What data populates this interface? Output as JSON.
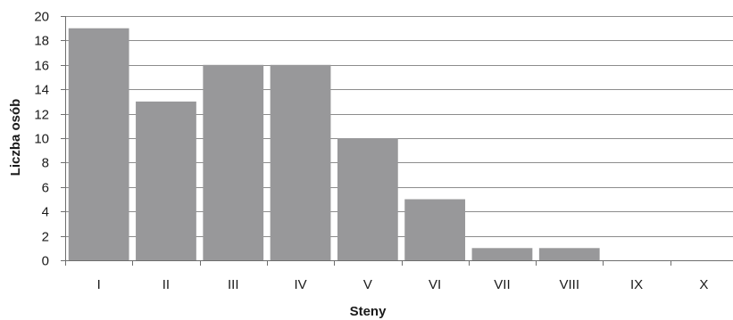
{
  "chart_data": {
    "type": "bar",
    "categories": [
      "I",
      "II",
      "III",
      "IV",
      "V",
      "VI",
      "VII",
      "VIII",
      "IX",
      "X"
    ],
    "values": [
      19,
      13,
      16,
      16,
      10,
      5,
      1,
      1,
      0,
      0
    ],
    "xlabel": "Steny",
    "ylabel": "Liczba osób",
    "ylim": [
      0,
      20
    ],
    "yticks": [
      0,
      2,
      4,
      6,
      8,
      10,
      12,
      14,
      16,
      18,
      20
    ],
    "grid": true,
    "legend": "none",
    "colors": {
      "bar": "#98989a",
      "grid": "#8c8c8c",
      "axis": "#6e6e6e",
      "text": "#1a1a1a"
    }
  }
}
